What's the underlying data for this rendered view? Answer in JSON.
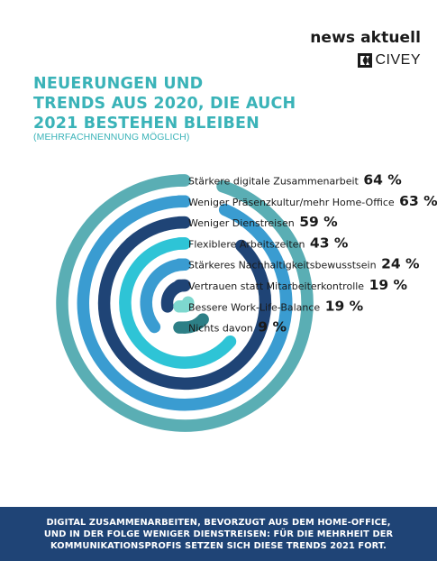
{
  "brand": {
    "name": "news aktuell",
    "partner": "CIVEY"
  },
  "header": {
    "title_lines": [
      "NEUERUNGEN UND",
      "TRENDS AUS 2020, DIE AUCH",
      "2021 BESTEHEN BLEIBEN"
    ],
    "subtitle": "(MEHRFACHNENNUNG MÖGLICH)"
  },
  "chart_data": {
    "type": "bar",
    "categories": [
      "Stärkere digitale Zusammenarbeit",
      "Weniger Präsenzkultur/mehr Home-Office",
      "Weniger Dienstreisen",
      "Flexiblere Arbeitszeiten",
      "Stärkeres Nachhaltigkeitsbewusstsein",
      "Vertrauen statt Mitarbeiterkontrolle",
      "Bessere Work-Life-Balance",
      "Nichts davon"
    ],
    "values": [
      64,
      63,
      59,
      43,
      24,
      19,
      19,
      9
    ],
    "value_labels": [
      "64 %",
      "63 %",
      "59 %",
      "43 %",
      "24 %",
      "19 %",
      "19 %",
      "9 %"
    ],
    "unit": "%",
    "colors": [
      "#5aaeb4",
      "#3a9cd1",
      "#1f4476",
      "#2ec4d6",
      "#3a9cd1",
      "#1f4476",
      "#7ed8cf",
      "#2d7f86"
    ]
  },
  "footer": {
    "lines": [
      "DIGITAL ZUSAMMENARBEITEN, BEVORZUGT AUS DEM HOME-OFFICE,",
      "UND IN DER FOLGE WENIGER DIENSTREISEN: FÜR DIE MEHRHEIT DER",
      "KOMMUNIKATIONSPROFIS SETZEN SICH DIESE TRENDS 2021 FORT."
    ]
  }
}
